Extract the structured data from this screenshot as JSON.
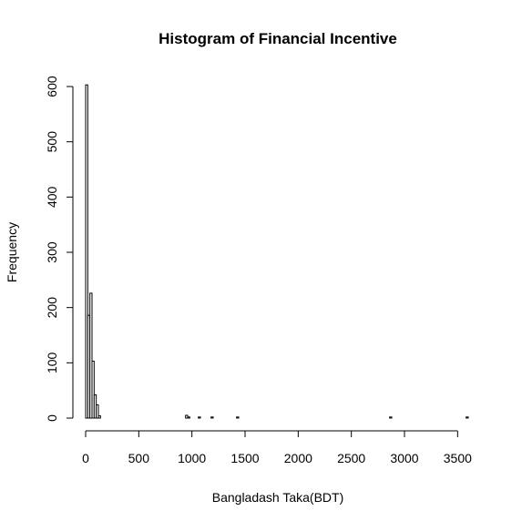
{
  "chart_data": {
    "type": "bar",
    "title": "Histogram of Financial Incentive",
    "xlabel": "Bangladash Taka(BDT)",
    "ylabel": "Frequency",
    "xlim": [
      0,
      3600
    ],
    "ylim": [
      0,
      600
    ],
    "x_ticks": [
      "0",
      "500",
      "1000",
      "1500",
      "2000",
      "2500",
      "3000",
      "3500"
    ],
    "y_ticks": [
      "0",
      "100",
      "200",
      "300",
      "400",
      "500",
      "600"
    ],
    "bin_width": 20,
    "bins": [
      {
        "start": 0,
        "end": 20,
        "count": 603
      },
      {
        "start": 20,
        "end": 40,
        "count": 186
      },
      {
        "start": 40,
        "end": 60,
        "count": 226
      },
      {
        "start": 60,
        "end": 80,
        "count": 103
      },
      {
        "start": 80,
        "end": 100,
        "count": 42
      },
      {
        "start": 100,
        "end": 120,
        "count": 24
      },
      {
        "start": 120,
        "end": 140,
        "count": 4
      },
      {
        "start": 940,
        "end": 960,
        "count": 5
      },
      {
        "start": 960,
        "end": 980,
        "count": 2
      },
      {
        "start": 1060,
        "end": 1080,
        "count": 2
      },
      {
        "start": 1180,
        "end": 1200,
        "count": 2
      },
      {
        "start": 1420,
        "end": 1440,
        "count": 2
      },
      {
        "start": 2860,
        "end": 2880,
        "count": 2
      },
      {
        "start": 3580,
        "end": 3600,
        "count": 2
      }
    ],
    "grid": false,
    "legend": "none"
  }
}
